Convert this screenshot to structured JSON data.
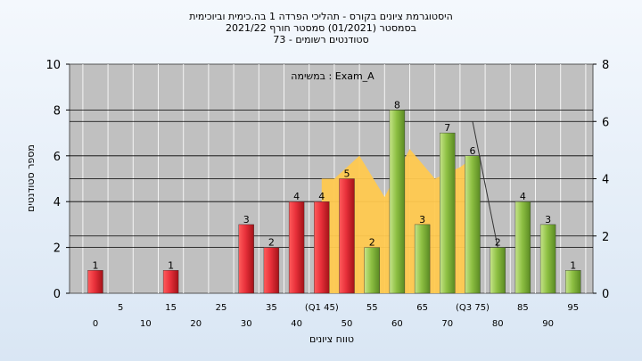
{
  "chart_data": {
    "type": "bar",
    "title_lines": [
      "היסטוגרמת ציונים בקורס - תהליכי הפרדה 1 בה.כימית וביוכימית",
      "בסמסטר  (01/2021)  סמסטר חורף 2021/22",
      "סטודנטים רשומים - 73"
    ],
    "xlabel": "טווח ציונים",
    "ylabel": "מספר סטודנטים",
    "annotation": "במשימה : Exam_A",
    "ylim": [
      0,
      10
    ],
    "y_ticks": [
      "0",
      "2",
      "4",
      "6",
      "8",
      "10"
    ],
    "y2lim": [
      0,
      8
    ],
    "y2_ticks": [
      "0",
      "2",
      "4",
      "6",
      "8"
    ],
    "bins": [
      0,
      5,
      10,
      15,
      20,
      25,
      30,
      35,
      40,
      45,
      50,
      55,
      60,
      65,
      70,
      75,
      80,
      85,
      90,
      95
    ],
    "x_labels_upper": [
      "5",
      "15",
      "25",
      "35",
      "(Q1 45)",
      "55",
      "65",
      "(Q3 75)",
      "85",
      "95"
    ],
    "x_labels_lower": [
      "0",
      "10",
      "20",
      "30",
      "40",
      "50",
      "60",
      "70",
      "80",
      "90"
    ],
    "bars": [
      {
        "x": 0,
        "value": 1,
        "color": "red"
      },
      {
        "x": 15,
        "value": 1,
        "color": "red"
      },
      {
        "x": 30,
        "value": 3,
        "color": "red"
      },
      {
        "x": 35,
        "value": 2,
        "color": "red"
      },
      {
        "x": 40,
        "value": 4,
        "color": "red"
      },
      {
        "x": 45,
        "value": 4,
        "color": "red"
      },
      {
        "x": 50,
        "value": 5,
        "color": "red"
      },
      {
        "x": 55,
        "value": 2,
        "color": "green"
      },
      {
        "x": 60,
        "value": 8,
        "color": "green"
      },
      {
        "x": 65,
        "value": 3,
        "color": "green"
      },
      {
        "x": 70,
        "value": 7,
        "color": "green"
      },
      {
        "x": 75,
        "value": 6,
        "color": "green"
      },
      {
        "x": 80,
        "value": 2,
        "color": "green"
      },
      {
        "x": 85,
        "value": 4,
        "color": "green"
      },
      {
        "x": 90,
        "value": 3,
        "color": "green"
      },
      {
        "x": 95,
        "value": 1,
        "color": "green"
      }
    ],
    "area": [
      {
        "x": 45,
        "value": 5
      },
      {
        "x": 47.5,
        "value": 5
      },
      {
        "x": 52.5,
        "value": 6
      },
      {
        "x": 57.5,
        "value": 4.2
      },
      {
        "x": 62.5,
        "value": 6.3
      },
      {
        "x": 67.5,
        "value": 5
      },
      {
        "x": 72.5,
        "value": 5.5
      },
      {
        "x": 75,
        "value": 5.9
      },
      {
        "x": 75,
        "value": 0
      },
      {
        "x": 45,
        "value": 0
      }
    ],
    "trend_line": [
      {
        "x": 75,
        "value": 7.5
      },
      {
        "x": 80,
        "value": 2
      }
    ],
    "colors": {
      "plot_bg": "#c0c0c0",
      "red_bar": "#e8303a",
      "green_bar": "#8ec043",
      "area": "#ffc94f"
    }
  }
}
